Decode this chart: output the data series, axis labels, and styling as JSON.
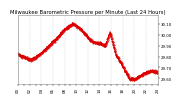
{
  "title": "Milwaukee Barometric Pressure per Minute (Last 24 Hours)",
  "line_color": "#dd0000",
  "line_width": 0.6,
  "marker": ".",
  "marker_size": 0.8,
  "bg_color": "#ffffff",
  "grid_color": "#bbbbbb",
  "ylim": [
    29.55,
    30.18
  ],
  "yticks": [
    29.6,
    29.7,
    29.8,
    29.9,
    30.0,
    30.1
  ],
  "title_fontsize": 3.8,
  "tick_fontsize": 2.8,
  "ctrl_x": [
    0,
    50,
    120,
    180,
    250,
    320,
    400,
    480,
    560,
    600,
    650,
    700,
    730,
    760,
    800,
    850,
    900,
    950,
    980,
    1010,
    1060,
    1100,
    1150,
    1200,
    1260,
    1320,
    1380,
    1440
  ],
  "ctrl_y": [
    29.82,
    29.8,
    29.77,
    29.79,
    29.84,
    29.9,
    29.97,
    30.05,
    30.1,
    30.08,
    30.05,
    30.0,
    29.97,
    29.94,
    29.93,
    29.92,
    29.9,
    30.02,
    29.92,
    29.82,
    29.75,
    29.68,
    29.6,
    29.59,
    29.62,
    29.65,
    29.67,
    29.65
  ],
  "noise_seed": 7,
  "noise_std": 0.006,
  "n_points": 1440,
  "xtick_count": 25,
  "xtick_step_hours": 1
}
